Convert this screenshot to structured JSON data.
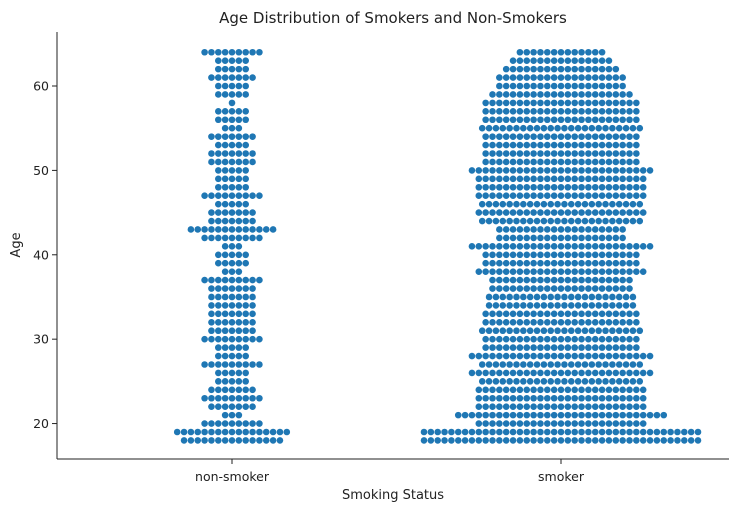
{
  "chart_data": {
    "type": "scatter",
    "subtype": "swarm",
    "title": "Age Distribution of Smokers and Non-Smokers",
    "xlabel": "Smoking Status",
    "ylabel": "Age",
    "categories": [
      "non-smoker",
      "smoker"
    ],
    "ylim": [
      15.8,
      66.4
    ],
    "yticks": [
      20,
      30,
      40,
      50,
      60
    ],
    "grid": false,
    "legend": "none",
    "point_color": "#1f77b4",
    "series": [
      {
        "category": "non-smoker",
        "age_counts": {
          "18": 15,
          "19": 17,
          "20": 9,
          "21": 3,
          "22": 7,
          "23": 9,
          "24": 7,
          "25": 5,
          "26": 5,
          "27": 9,
          "28": 5,
          "29": 5,
          "30": 9,
          "31": 7,
          "32": 7,
          "33": 7,
          "34": 7,
          "35": 7,
          "36": 7,
          "37": 9,
          "38": 3,
          "39": 5,
          "40": 5,
          "41": 3,
          "42": 9,
          "43": 13,
          "44": 7,
          "45": 7,
          "46": 5,
          "47": 9,
          "48": 5,
          "49": 5,
          "50": 5,
          "51": 7,
          "52": 7,
          "53": 5,
          "54": 7,
          "55": 3,
          "56": 5,
          "57": 5,
          "58": 1,
          "59": 5,
          "60": 5,
          "61": 7,
          "62": 5,
          "63": 5,
          "64": 9
        }
      },
      {
        "category": "smoker",
        "age_counts": {
          "18": 41,
          "19": 41,
          "20": 25,
          "21": 31,
          "22": 25,
          "23": 25,
          "24": 25,
          "25": 24,
          "26": 27,
          "27": 24,
          "28": 27,
          "29": 23,
          "30": 23,
          "31": 24,
          "32": 23,
          "33": 23,
          "34": 22,
          "35": 22,
          "36": 21,
          "37": 21,
          "38": 25,
          "39": 23,
          "40": 23,
          "41": 27,
          "42": 19,
          "43": 19,
          "44": 24,
          "45": 25,
          "46": 24,
          "47": 25,
          "48": 25,
          "49": 25,
          "50": 27,
          "51": 23,
          "52": 23,
          "53": 23,
          "54": 23,
          "55": 24,
          "56": 23,
          "57": 23,
          "58": 23,
          "59": 21,
          "60": 19,
          "61": 19,
          "62": 17,
          "63": 15,
          "64": 13
        }
      }
    ]
  }
}
